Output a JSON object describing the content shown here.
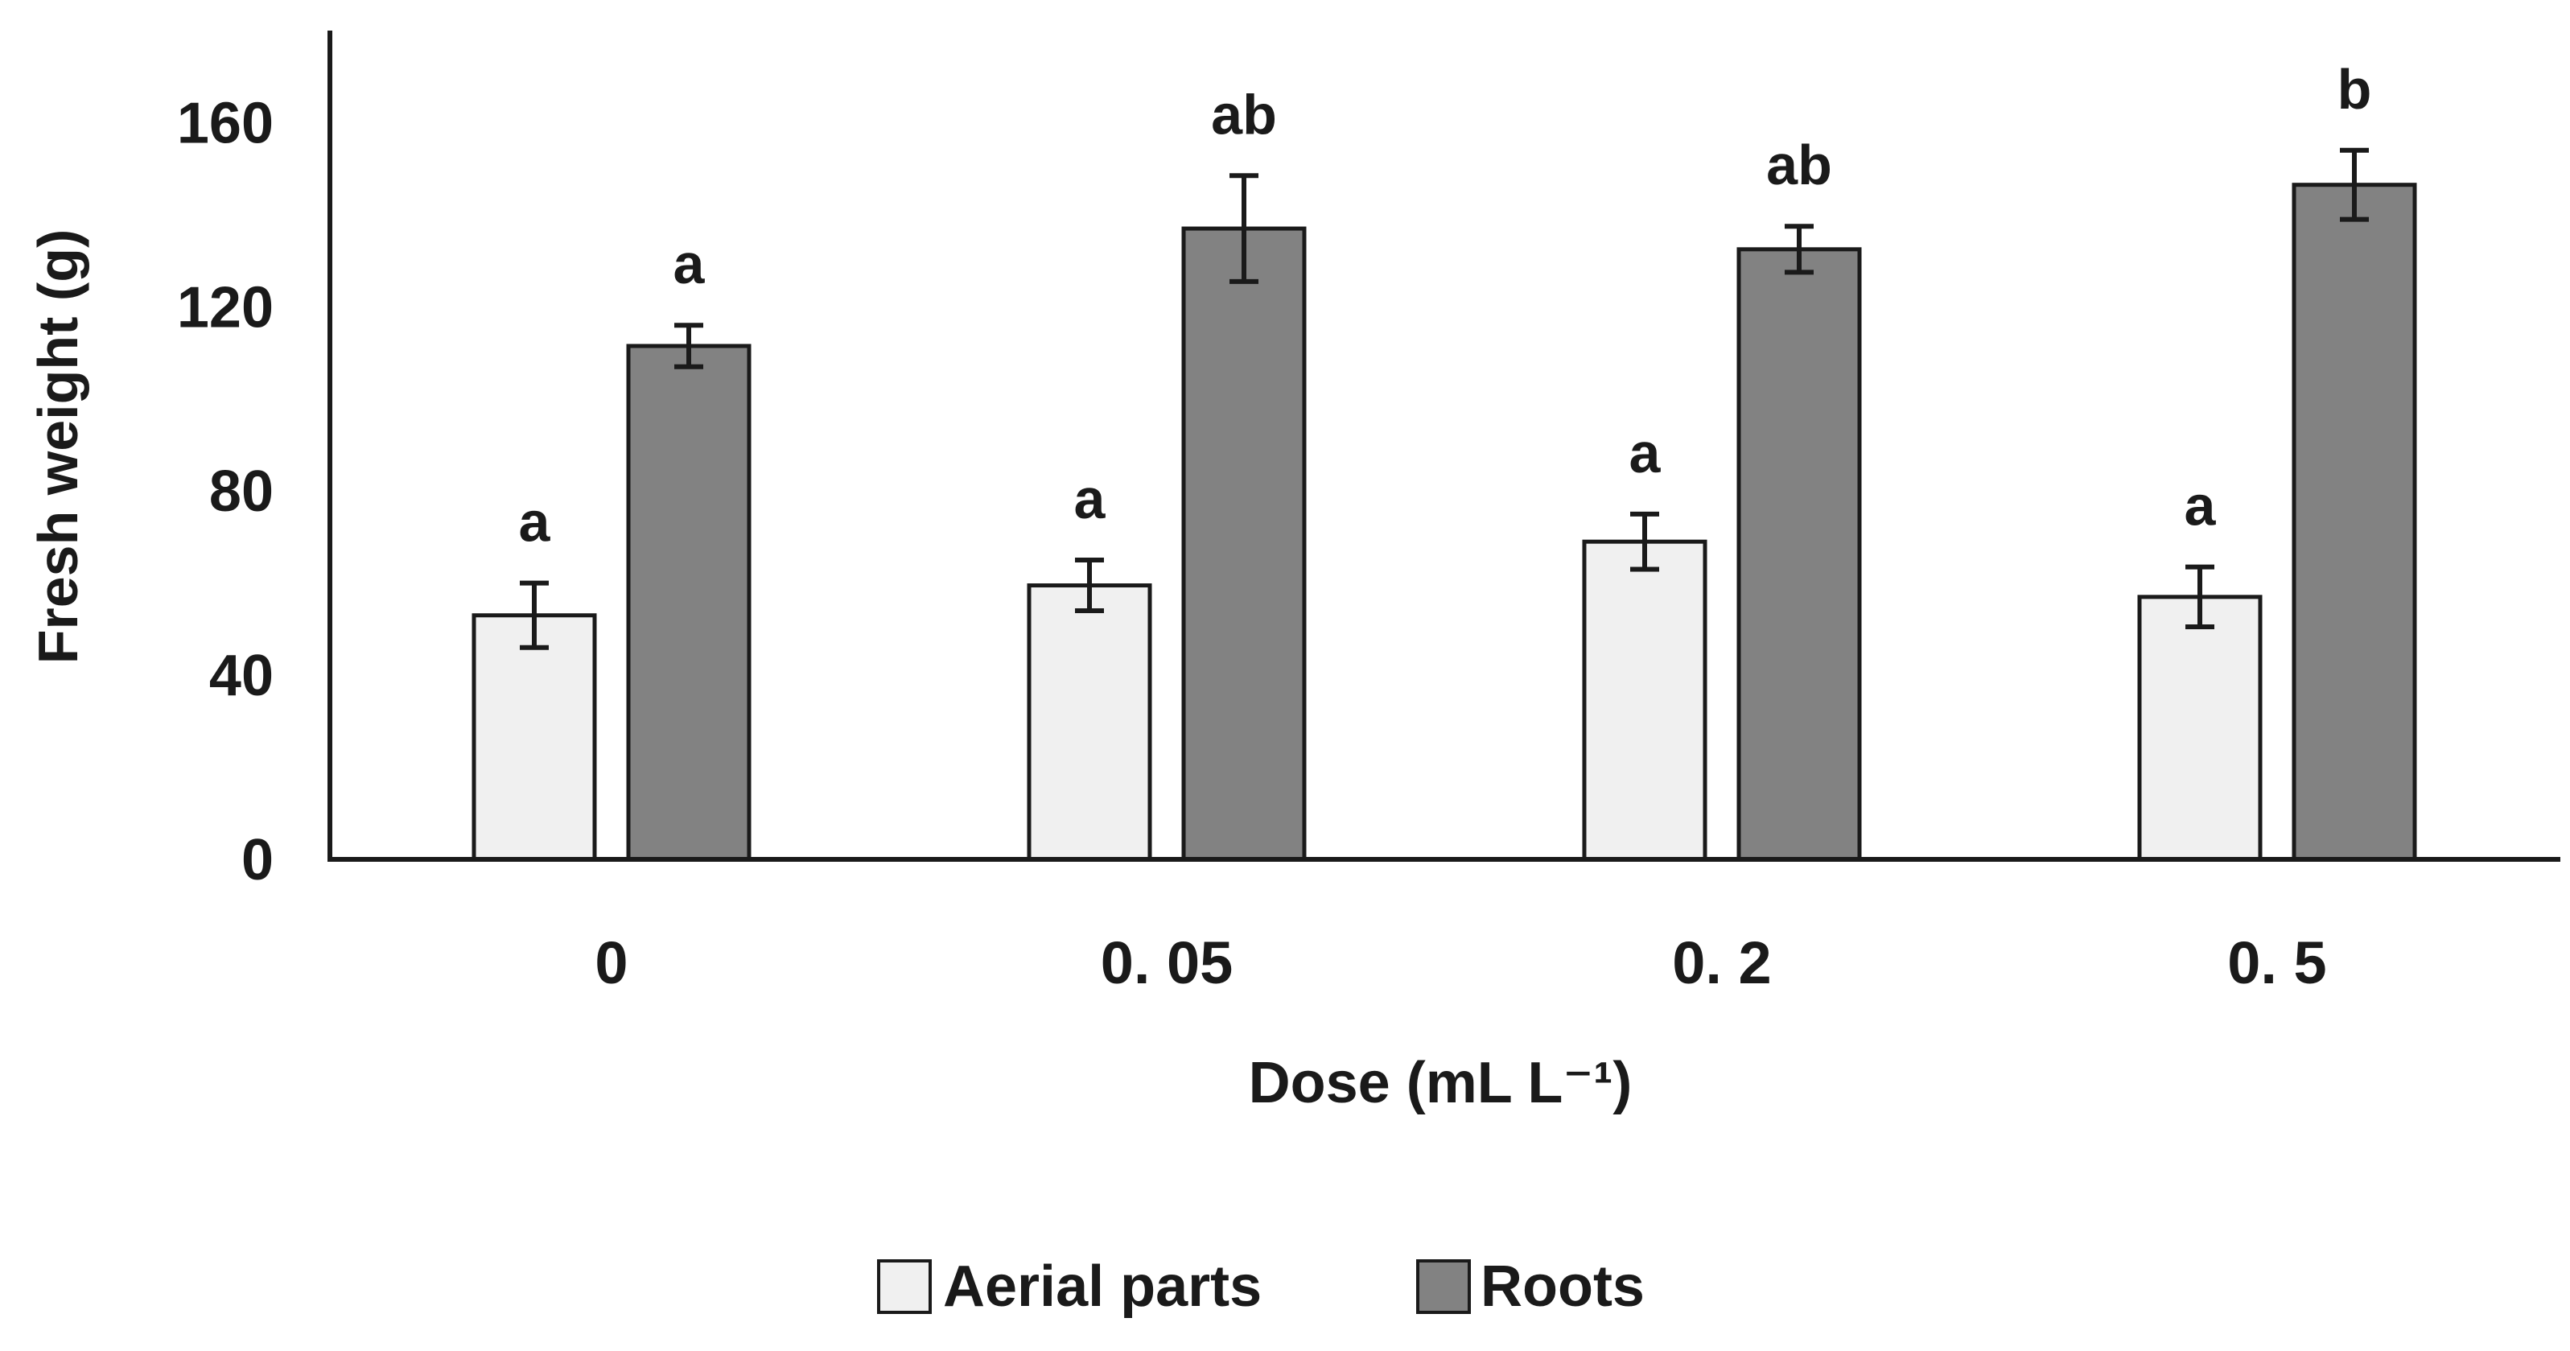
{
  "chart_data": {
    "type": "bar",
    "title": "",
    "xlabel": "Dose (mL L⁻¹)",
    "ylabel": "Fresh weight (g)",
    "ylim": [
      0,
      180
    ],
    "yticks": [
      0,
      40,
      80,
      120,
      160
    ],
    "categories": [
      "0",
      "0. 05",
      "0. 2",
      "0. 5"
    ],
    "series": [
      {
        "name": "Aerial parts",
        "color": "#f0f0f0",
        "values": [
          53,
          59.5,
          69,
          57
        ],
        "errors": [
          7,
          5.5,
          6,
          6.5
        ],
        "letters": [
          "a",
          "a",
          "a",
          "a"
        ]
      },
      {
        "name": "Roots",
        "color": "#828282",
        "values": [
          111.5,
          137,
          132.5,
          146.5
        ],
        "errors": [
          4.5,
          11.5,
          5,
          7.5
        ],
        "letters": [
          "a",
          "ab",
          "ab",
          "b"
        ]
      }
    ],
    "legend_position": "bottom"
  }
}
